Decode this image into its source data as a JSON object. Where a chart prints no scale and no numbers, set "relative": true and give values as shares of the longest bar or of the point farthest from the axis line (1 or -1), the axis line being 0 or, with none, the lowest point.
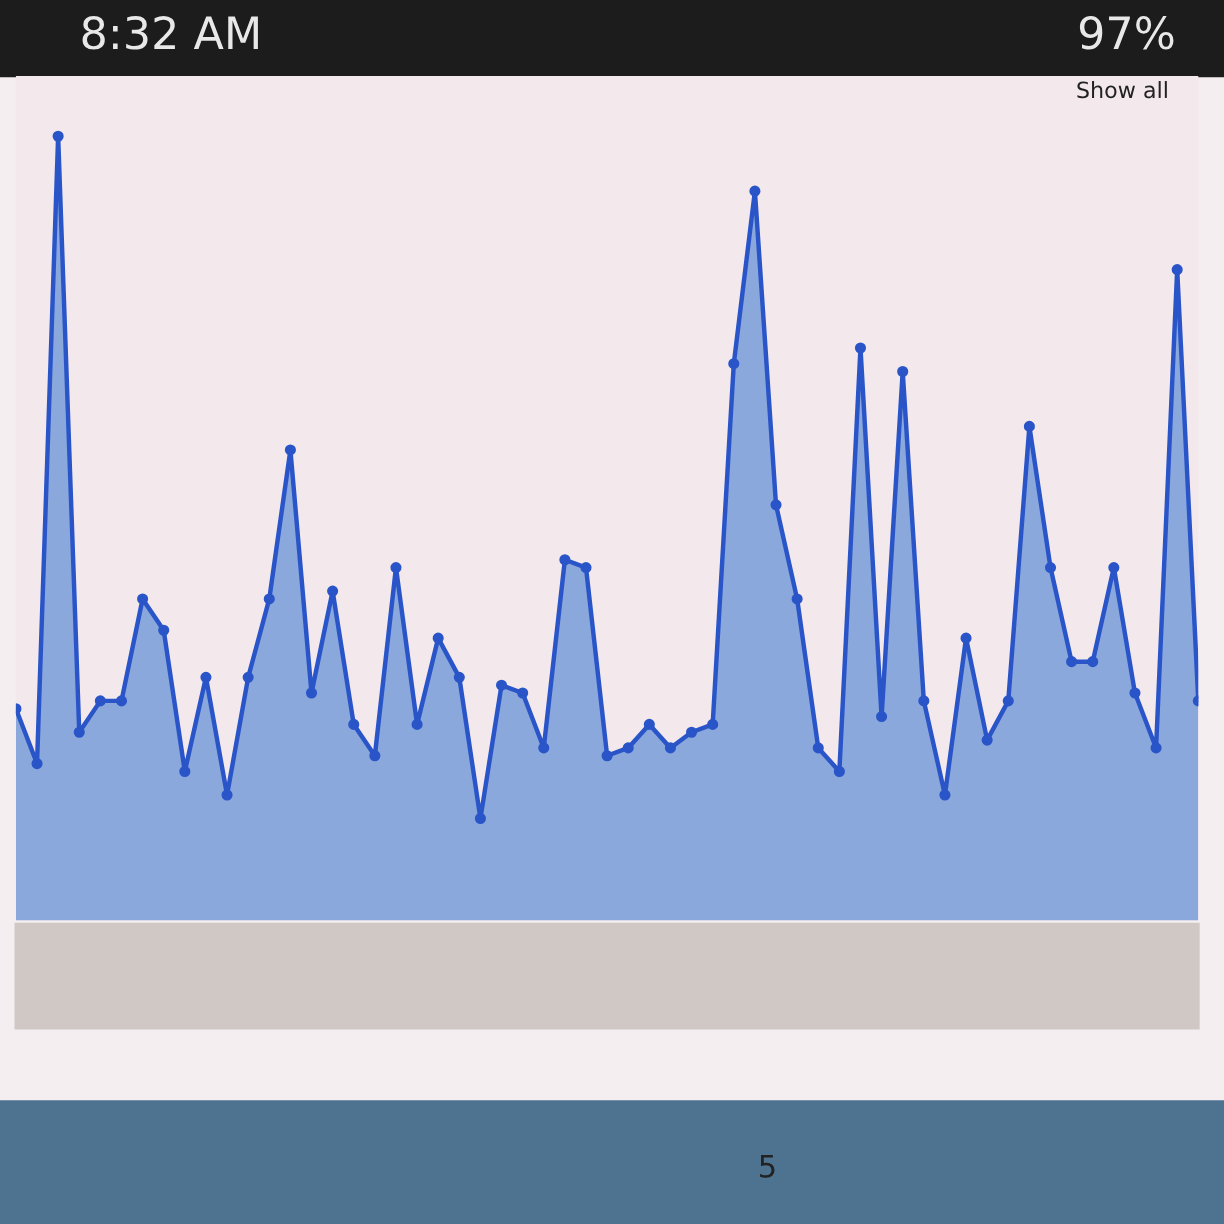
{
  "chart_data": {
    "type": "area",
    "relative": true,
    "categories": [
      null,
      null,
      null,
      null,
      null,
      null,
      null,
      null,
      null,
      null,
      null,
      null,
      null,
      null,
      null,
      null,
      null,
      null,
      null,
      null,
      null,
      null,
      null,
      null,
      null,
      null,
      null,
      null,
      null,
      null,
      null,
      null,
      null,
      null,
      null,
      null,
      null,
      null,
      null,
      null,
      null,
      null,
      null,
      null,
      null,
      null,
      null,
      null,
      null,
      null,
      null,
      null,
      null,
      null,
      null,
      null,
      null
    ],
    "series": [
      {
        "color": "#2a55c8",
        "values": [
          0.27,
          0.2,
          1.0,
          0.24,
          0.28,
          0.28,
          0.41,
          0.37,
          0.19,
          0.31,
          0.16,
          0.31,
          0.41,
          0.6,
          0.29,
          0.42,
          0.25,
          0.21,
          0.45,
          0.25,
          0.36,
          0.31,
          0.13,
          0.3,
          0.29,
          0.22,
          0.46,
          0.45,
          0.21,
          0.22,
          0.25,
          0.22,
          0.24,
          0.25,
          0.71,
          0.93,
          0.53,
          0.41,
          0.22,
          0.19,
          0.73,
          0.26,
          0.7,
          0.28,
          0.16,
          0.36,
          0.23,
          0.28,
          0.63,
          0.45,
          0.33,
          0.33,
          0.45,
          0.29,
          0.22,
          0.83,
          0.28
        ]
      }
    ],
    "marker": "circle",
    "annotations": [
      "8:32 AM",
      "97%",
      "Show all",
      "5"
    ]
  }
}
